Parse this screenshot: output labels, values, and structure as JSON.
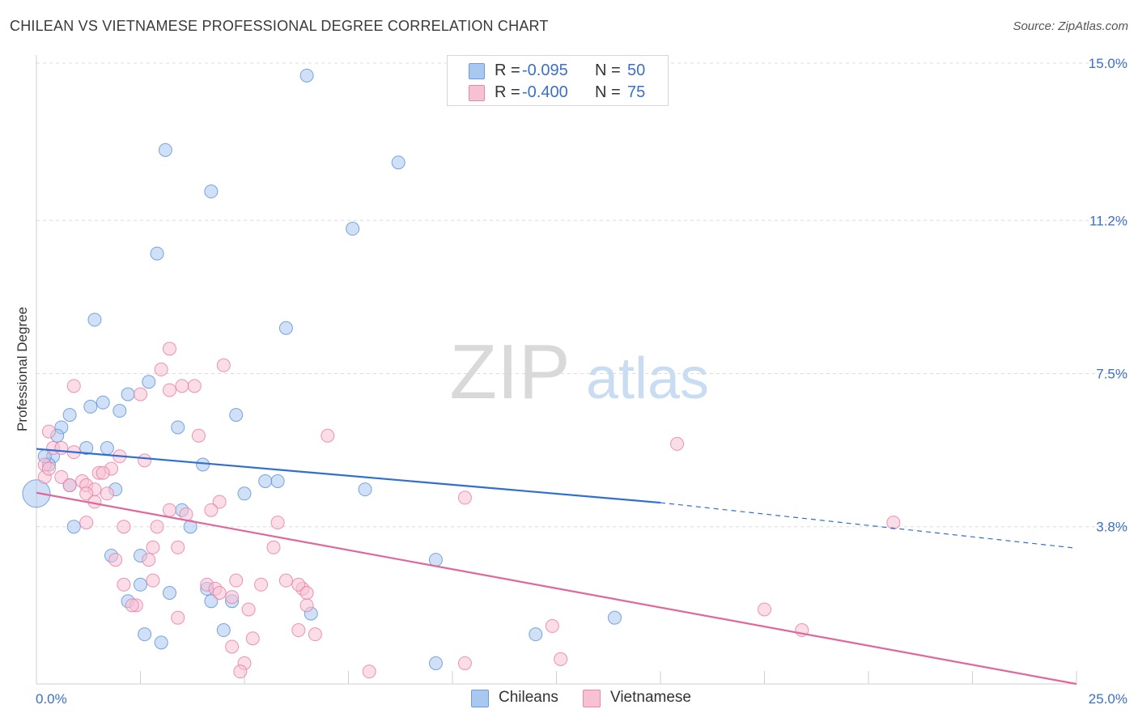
{
  "title": "CHILEAN VS VIETNAMESE PROFESSIONAL DEGREE CORRELATION CHART",
  "source": "Source: ZipAtlas.com",
  "watermark": {
    "zip": "ZIP",
    "atlas": "atlas"
  },
  "legend_top": {
    "rows": [
      {
        "r_label": "R =",
        "r_value": "-0.095",
        "n_label": "N =",
        "n_value": "50",
        "color": "#a9c8f0",
        "border": "#6f9ad6"
      },
      {
        "r_label": "R =",
        "r_value": "-0.400",
        "n_label": "N =",
        "n_value": "75",
        "color": "#f7c1d3",
        "border": "#e58aaa"
      }
    ]
  },
  "legend_bottom": [
    {
      "label": "Chileans",
      "color": "#a9c8f0",
      "border": "#6f9ad6"
    },
    {
      "label": "Vietnamese",
      "color": "#f7c1d3",
      "border": "#e58aaa"
    }
  ],
  "chart_data": {
    "type": "scatter",
    "title": "CHILEAN VS VIETNAMESE PROFESSIONAL DEGREE CORRELATION CHART",
    "xlabel": "",
    "ylabel": "Professional Degree",
    "xlim": [
      0,
      25
    ],
    "ylim": [
      0,
      15.5
    ],
    "x_tick_labels": {
      "min": "0.0%",
      "max": "25.0%"
    },
    "y_ticks": [
      {
        "value": 3.8,
        "label": "3.8%"
      },
      {
        "value": 7.5,
        "label": "7.5%"
      },
      {
        "value": 11.2,
        "label": "11.2%"
      },
      {
        "value": 15.0,
        "label": "15.0%"
      }
    ],
    "grid": "horizontal dashed",
    "legend_position": "top-center",
    "colors": {
      "chileans": "#5b8fd9",
      "vietnamese": "#e87aa2",
      "chileans_fill": "#a9c8f0",
      "vietnamese_fill": "#f7c1d3"
    },
    "series": [
      {
        "name": "Chileans",
        "trend": {
          "x": [
            0,
            15,
            25
          ],
          "y": [
            5.68,
            4.38,
            3.28
          ],
          "solid_until": 15
        },
        "points": [
          [
            6.5,
            14.7
          ],
          [
            3.1,
            12.9
          ],
          [
            8.7,
            12.6
          ],
          [
            4.2,
            11.9
          ],
          [
            7.6,
            11.0
          ],
          [
            2.9,
            10.4
          ],
          [
            1.4,
            8.8
          ],
          [
            6.0,
            8.6
          ],
          [
            2.7,
            7.3
          ],
          [
            1.6,
            6.8
          ],
          [
            2.2,
            7.0
          ],
          [
            1.3,
            6.7
          ],
          [
            0.8,
            6.5
          ],
          [
            2.0,
            6.6
          ],
          [
            4.8,
            6.5
          ],
          [
            0.6,
            6.2
          ],
          [
            3.4,
            6.2
          ],
          [
            0.5,
            6.0
          ],
          [
            1.2,
            5.7
          ],
          [
            0.4,
            5.5
          ],
          [
            0.3,
            5.3
          ],
          [
            0.2,
            5.5
          ],
          [
            1.7,
            5.7
          ],
          [
            4.0,
            5.3
          ],
          [
            1.9,
            4.7
          ],
          [
            0.8,
            4.8
          ],
          [
            5.5,
            4.9
          ],
          [
            5.8,
            4.9
          ],
          [
            5.0,
            4.6
          ],
          [
            7.9,
            4.7
          ],
          [
            3.5,
            4.2
          ],
          [
            3.7,
            3.8
          ],
          [
            0.9,
            3.8
          ],
          [
            1.8,
            3.1
          ],
          [
            2.5,
            3.1
          ],
          [
            9.6,
            3.0
          ],
          [
            2.5,
            2.4
          ],
          [
            3.2,
            2.2
          ],
          [
            4.1,
            2.3
          ],
          [
            2.2,
            2.0
          ],
          [
            4.2,
            2.0
          ],
          [
            4.7,
            2.0
          ],
          [
            6.6,
            1.7
          ],
          [
            13.9,
            1.6
          ],
          [
            2.6,
            1.2
          ],
          [
            4.5,
            1.3
          ],
          [
            3.0,
            1.0
          ],
          [
            12.0,
            1.2
          ],
          [
            9.6,
            0.5
          ],
          [
            0.0,
            4.6
          ]
        ]
      },
      {
        "name": "Vietnamese",
        "trend": {
          "x": [
            0,
            25
          ],
          "y": [
            4.62,
            0.0
          ]
        },
        "points": [
          [
            3.2,
            8.1
          ],
          [
            4.5,
            7.7
          ],
          [
            3.0,
            7.6
          ],
          [
            3.5,
            7.2
          ],
          [
            3.8,
            7.2
          ],
          [
            0.9,
            7.2
          ],
          [
            3.2,
            7.1
          ],
          [
            2.5,
            7.0
          ],
          [
            7.0,
            6.0
          ],
          [
            3.9,
            6.0
          ],
          [
            0.3,
            6.1
          ],
          [
            0.4,
            5.7
          ],
          [
            15.4,
            5.8
          ],
          [
            0.6,
            5.7
          ],
          [
            0.9,
            5.6
          ],
          [
            2.0,
            5.5
          ],
          [
            2.6,
            5.4
          ],
          [
            0.2,
            5.3
          ],
          [
            0.2,
            5.0
          ],
          [
            0.3,
            5.2
          ],
          [
            1.5,
            5.1
          ],
          [
            1.8,
            5.2
          ],
          [
            1.6,
            5.1
          ],
          [
            0.6,
            5.0
          ],
          [
            1.1,
            4.9
          ],
          [
            1.2,
            4.8
          ],
          [
            0.8,
            4.8
          ],
          [
            1.4,
            4.7
          ],
          [
            1.2,
            4.6
          ],
          [
            1.7,
            4.6
          ],
          [
            1.4,
            4.4
          ],
          [
            4.4,
            4.4
          ],
          [
            10.3,
            4.5
          ],
          [
            3.2,
            4.2
          ],
          [
            4.2,
            4.2
          ],
          [
            3.6,
            4.1
          ],
          [
            1.2,
            3.9
          ],
          [
            2.1,
            3.8
          ],
          [
            2.9,
            3.8
          ],
          [
            5.8,
            3.9
          ],
          [
            20.6,
            3.9
          ],
          [
            3.4,
            3.3
          ],
          [
            2.8,
            3.3
          ],
          [
            5.7,
            3.3
          ],
          [
            1.9,
            3.0
          ],
          [
            2.7,
            3.0
          ],
          [
            2.8,
            2.5
          ],
          [
            4.8,
            2.5
          ],
          [
            2.1,
            2.4
          ],
          [
            4.1,
            2.4
          ],
          [
            4.3,
            2.3
          ],
          [
            5.4,
            2.4
          ],
          [
            6.0,
            2.5
          ],
          [
            6.4,
            2.3
          ],
          [
            6.3,
            2.4
          ],
          [
            6.5,
            2.2
          ],
          [
            4.4,
            2.2
          ],
          [
            4.7,
            2.1
          ],
          [
            2.4,
            1.9
          ],
          [
            2.3,
            1.9
          ],
          [
            6.5,
            1.9
          ],
          [
            5.1,
            1.8
          ],
          [
            3.4,
            1.6
          ],
          [
            17.5,
            1.8
          ],
          [
            12.4,
            1.4
          ],
          [
            6.3,
            1.3
          ],
          [
            6.7,
            1.2
          ],
          [
            5.2,
            1.1
          ],
          [
            18.4,
            1.3
          ],
          [
            4.7,
            0.9
          ],
          [
            5.0,
            0.5
          ],
          [
            10.3,
            0.5
          ],
          [
            12.6,
            0.6
          ],
          [
            8.0,
            0.3
          ],
          [
            4.9,
            0.3
          ]
        ]
      }
    ]
  }
}
